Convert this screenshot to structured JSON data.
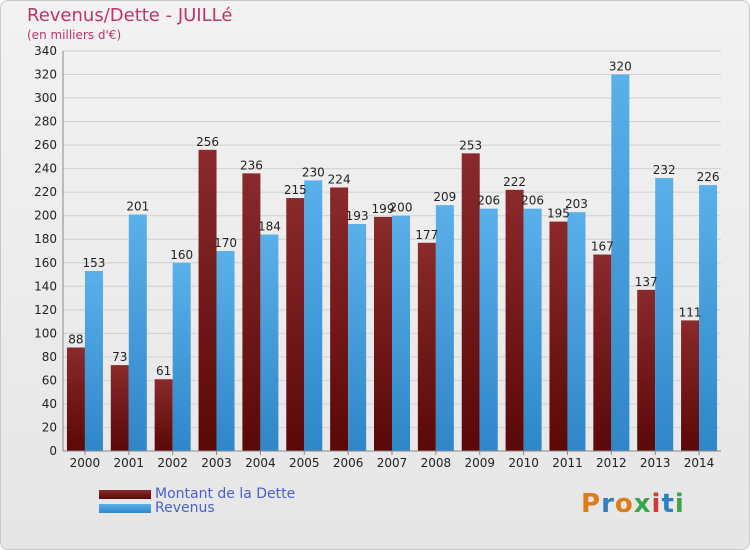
{
  "header": {
    "title": "Revenus/Dette - JUILLé",
    "subtitle": "(en milliers d'€)"
  },
  "legend": {
    "debt_label": "Montant de la Dette",
    "revenue_label": "Revenus"
  },
  "logo": {
    "letters": [
      "P",
      "r",
      "o",
      "x",
      "i",
      "t",
      "i"
    ]
  },
  "colors": {
    "debt": "#7a1a1c",
    "revenue": "#3fa0e0",
    "title": "#c0336a",
    "legend_text": "#4a5fd0"
  },
  "chart_data": {
    "type": "bar",
    "title": "Revenus/Dette - JUILLé",
    "subtitle": "(en milliers d'€)",
    "categories": [
      "2000",
      "2001",
      "2002",
      "2003",
      "2004",
      "2005",
      "2006",
      "2007",
      "2008",
      "2009",
      "2010",
      "2011",
      "2012",
      "2013",
      "2014"
    ],
    "series": [
      {
        "name": "Montant de la Dette",
        "values": [
          88,
          73,
          61,
          256,
          236,
          215,
          224,
          199,
          177,
          253,
          222,
          195,
          167,
          137,
          111
        ]
      },
      {
        "name": "Revenus",
        "values": [
          153,
          201,
          160,
          170,
          184,
          230,
          193,
          200,
          209,
          206,
          206,
          203,
          320,
          232,
          226
        ]
      }
    ],
    "ylim": [
      0,
      340
    ],
    "yticks": [
      0,
      20,
      40,
      60,
      80,
      100,
      120,
      140,
      160,
      180,
      200,
      220,
      240,
      260,
      280,
      300,
      320,
      340
    ],
    "grid": true,
    "legend_position": "bottom-left"
  }
}
